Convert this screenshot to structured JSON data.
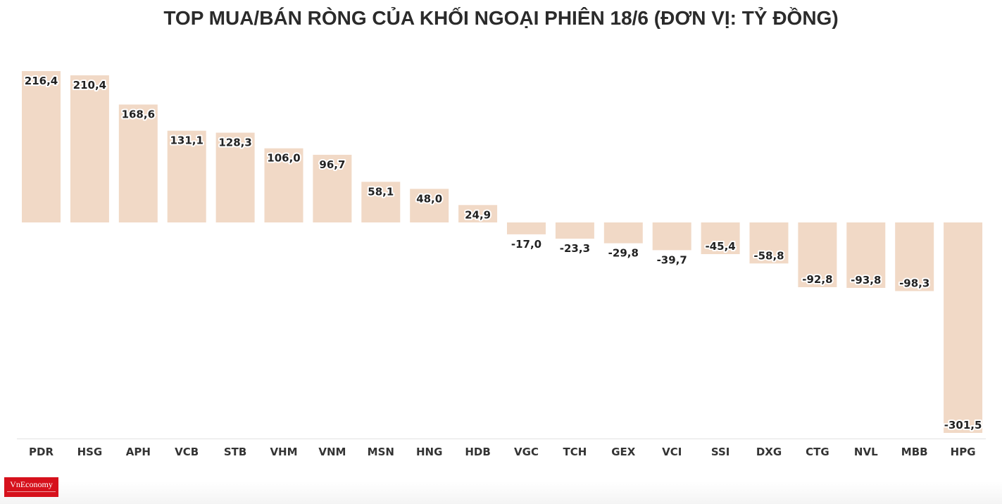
{
  "chart_data": {
    "type": "bar",
    "title": "TOP MUA/BÁN RÒNG CỦA KHỐI NGOẠI PHIÊN 18/6 (ĐƠN VỊ: TỶ ĐỒNG)",
    "xlabel": "",
    "ylabel": "",
    "ylim": [
      -301.5,
      216.4
    ],
    "grid": false,
    "categories": [
      "PDR",
      "HSG",
      "APH",
      "VCB",
      "STB",
      "VHM",
      "VNM",
      "MSN",
      "HNG",
      "HDB",
      "VGC",
      "TCH",
      "GEX",
      "VCI",
      "SSI",
      "DXG",
      "CTG",
      "NVL",
      "MBB",
      "HPG"
    ],
    "values": [
      216.4,
      210.4,
      168.6,
      131.1,
      128.3,
      106.0,
      96.7,
      58.1,
      48.0,
      24.9,
      -17.0,
      -23.3,
      -29.8,
      -39.7,
      -45.4,
      -58.8,
      -92.8,
      -93.8,
      -98.3,
      -301.5
    ],
    "value_labels": [
      "216,4",
      "210,4",
      "168,6",
      "131,1",
      "128,3",
      "106,0",
      "96,7",
      "58,1",
      "48,0",
      "24,9",
      "-17,0",
      "-23,3",
      "-29,8",
      "-39,7",
      "-45,4",
      "-58,8",
      "-92,8",
      "-93,8",
      "-98,3",
      "-301,5"
    ],
    "bar_color": "#f1d9c6"
  },
  "branding": {
    "logo_text": "VnEconomy",
    "logo_color": "#d6111c"
  }
}
